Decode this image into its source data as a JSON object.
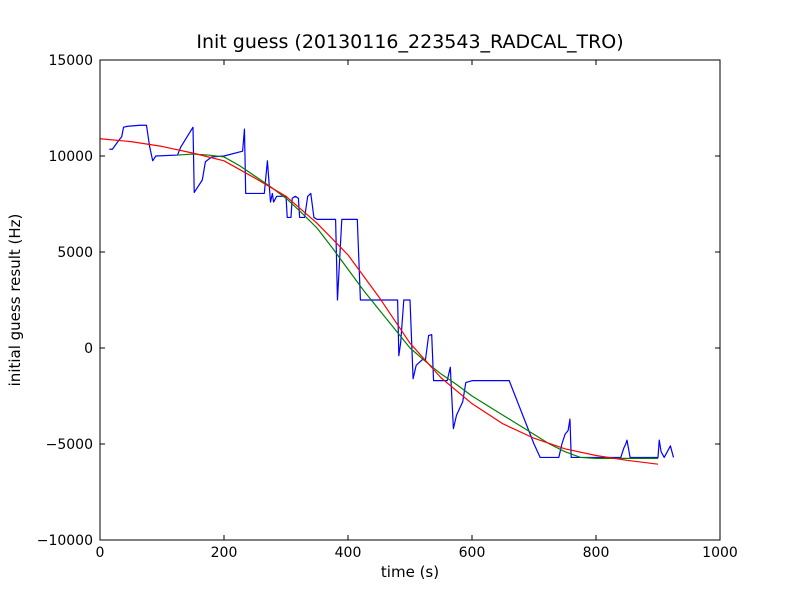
{
  "chart_data": {
    "type": "line",
    "title": "Init guess (20130116_223543_RADCAL_TRO)",
    "xlabel": "time (s)",
    "ylabel": "initial guess result (Hz)",
    "xlim": [
      0,
      1000
    ],
    "ylim": [
      -10000,
      15000
    ],
    "x_ticks": [
      0,
      200,
      400,
      600,
      800,
      1000
    ],
    "x_tick_labels": [
      "0",
      "200",
      "400",
      "600",
      "800",
      "1000"
    ],
    "y_ticks": [
      -10000,
      -5000,
      0,
      5000,
      10000,
      15000
    ],
    "y_tick_labels": [
      "−10000",
      "−5000",
      "0",
      "5000",
      "10000",
      "15000"
    ],
    "grid": false,
    "legend": "none",
    "series": [
      {
        "color": "#0000ff",
        "points": [
          [
            15,
            10350
          ],
          [
            20,
            10350
          ],
          [
            30,
            10800
          ],
          [
            35,
            11000
          ],
          [
            38,
            11500
          ],
          [
            45,
            11550
          ],
          [
            65,
            11600
          ],
          [
            75,
            11600
          ],
          [
            80,
            10500
          ],
          [
            85,
            9750
          ],
          [
            90,
            10000
          ],
          [
            125,
            10050
          ],
          [
            130,
            10450
          ],
          [
            150,
            11500
          ],
          [
            152,
            8100
          ],
          [
            165,
            8750
          ],
          [
            170,
            9700
          ],
          [
            180,
            9950
          ],
          [
            200,
            10000
          ],
          [
            230,
            10250
          ],
          [
            233,
            11400
          ],
          [
            235,
            8050
          ],
          [
            260,
            8050
          ],
          [
            265,
            8050
          ],
          [
            270,
            9750
          ],
          [
            275,
            7600
          ],
          [
            278,
            8050
          ],
          [
            280,
            7600
          ],
          [
            285,
            7900
          ],
          [
            300,
            7900
          ],
          [
            302,
            6800
          ],
          [
            308,
            6800
          ],
          [
            310,
            7800
          ],
          [
            315,
            7900
          ],
          [
            320,
            7800
          ],
          [
            322,
            6800
          ],
          [
            330,
            6800
          ],
          [
            335,
            7900
          ],
          [
            340,
            8050
          ],
          [
            345,
            6800
          ],
          [
            350,
            6700
          ],
          [
            375,
            6700
          ],
          [
            380,
            6700
          ],
          [
            383,
            2500
          ],
          [
            390,
            6700
          ],
          [
            415,
            6700
          ],
          [
            420,
            2500
          ],
          [
            475,
            2500
          ],
          [
            480,
            2500
          ],
          [
            482,
            -400
          ],
          [
            485,
            300
          ],
          [
            490,
            2500
          ],
          [
            500,
            2500
          ],
          [
            505,
            -1600
          ],
          [
            510,
            -900
          ],
          [
            520,
            -600
          ],
          [
            525,
            -600
          ],
          [
            530,
            650
          ],
          [
            535,
            700
          ],
          [
            538,
            -1700
          ],
          [
            545,
            -1700
          ],
          [
            560,
            -1700
          ],
          [
            565,
            -1000
          ],
          [
            570,
            -4200
          ],
          [
            575,
            -3500
          ],
          [
            585,
            -2800
          ],
          [
            590,
            -1800
          ],
          [
            600,
            -1700
          ],
          [
            660,
            -1700
          ],
          [
            700,
            -5000
          ],
          [
            710,
            -5700
          ],
          [
            740,
            -5700
          ],
          [
            745,
            -5000
          ],
          [
            750,
            -4500
          ],
          [
            755,
            -4300
          ],
          [
            758,
            -3700
          ],
          [
            760,
            -5700
          ],
          [
            840,
            -5700
          ],
          [
            845,
            -5200
          ],
          [
            848,
            -5000
          ],
          [
            850,
            -4800
          ],
          [
            855,
            -5700
          ],
          [
            900,
            -5700
          ],
          [
            902,
            -4800
          ],
          [
            905,
            -5400
          ],
          [
            910,
            -5700
          ],
          [
            920,
            -5100
          ],
          [
            925,
            -5700
          ]
        ]
      },
      {
        "color": "#008000",
        "points": [
          [
            125,
            10050
          ],
          [
            150,
            10100
          ],
          [
            175,
            10050
          ],
          [
            200,
            9950
          ],
          [
            225,
            9500
          ],
          [
            250,
            8950
          ],
          [
            275,
            8400
          ],
          [
            300,
            7800
          ],
          [
            325,
            7050
          ],
          [
            350,
            6250
          ],
          [
            375,
            5200
          ],
          [
            400,
            4100
          ],
          [
            425,
            3000
          ],
          [
            450,
            2000
          ],
          [
            475,
            1000
          ],
          [
            500,
            0
          ],
          [
            525,
            -700
          ],
          [
            550,
            -1350
          ],
          [
            575,
            -1900
          ],
          [
            600,
            -2500
          ],
          [
            625,
            -3000
          ],
          [
            650,
            -3500
          ],
          [
            675,
            -4000
          ],
          [
            700,
            -4500
          ],
          [
            725,
            -5000
          ],
          [
            750,
            -5400
          ],
          [
            775,
            -5700
          ],
          [
            800,
            -5750
          ],
          [
            825,
            -5750
          ],
          [
            850,
            -5750
          ],
          [
            875,
            -5750
          ],
          [
            900,
            -5750
          ]
        ]
      },
      {
        "color": "#ff0000",
        "points": [
          [
            0,
            10900
          ],
          [
            50,
            10750
          ],
          [
            100,
            10500
          ],
          [
            150,
            10150
          ],
          [
            200,
            9750
          ],
          [
            250,
            8850
          ],
          [
            300,
            7900
          ],
          [
            350,
            6500
          ],
          [
            400,
            4850
          ],
          [
            450,
            2650
          ],
          [
            500,
            250
          ],
          [
            550,
            -1550
          ],
          [
            600,
            -2900
          ],
          [
            650,
            -3950
          ],
          [
            700,
            -4700
          ],
          [
            750,
            -5250
          ],
          [
            800,
            -5600
          ],
          [
            850,
            -5850
          ],
          [
            900,
            -6050
          ]
        ]
      }
    ]
  }
}
